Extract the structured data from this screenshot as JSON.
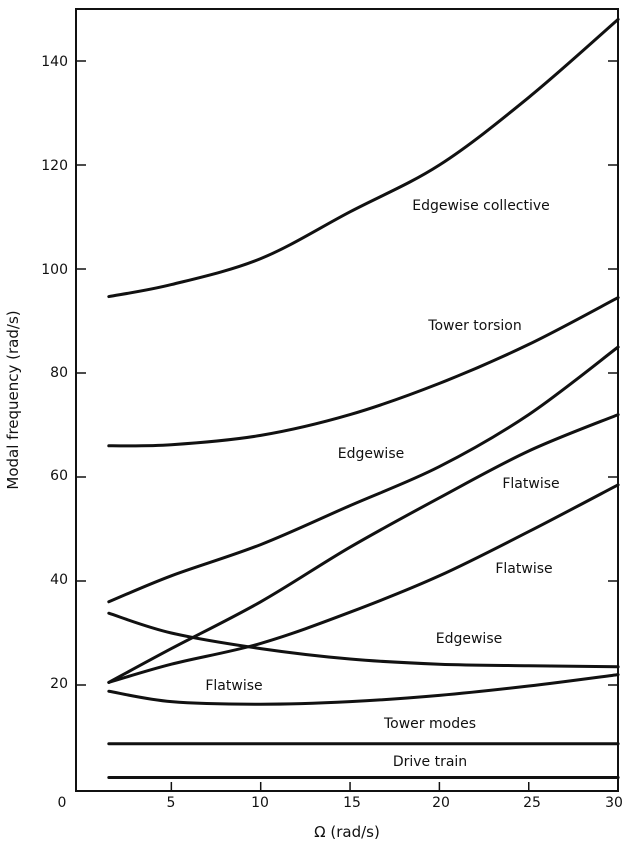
{
  "chart_data": {
    "type": "line",
    "title": "",
    "xlabel": "Ω (rad/s)",
    "ylabel": "Modal frequency (rad/s)",
    "xlim": [
      0,
      30
    ],
    "ylim": [
      0,
      150
    ],
    "xticks": [
      0,
      5,
      10,
      15,
      20,
      25,
      30
    ],
    "yticks": [
      20,
      40,
      60,
      80,
      100,
      120,
      140
    ],
    "grid": false,
    "legend": "none (curves labeled inline)",
    "line_color": "#111111",
    "series": [
      {
        "name": "Edgewise collective",
        "x": [
          1.5,
          5,
          10,
          15,
          20,
          25,
          30
        ],
        "y": [
          94.7,
          97,
          102,
          111,
          120,
          133,
          148
        ]
      },
      {
        "name": "Tower torsion",
        "x": [
          1.5,
          5,
          10,
          15,
          20,
          25,
          30
        ],
        "y": [
          66,
          66.2,
          68,
          72,
          78,
          85.5,
          94.5
        ]
      },
      {
        "name": "Edgewise",
        "x": [
          1.5,
          5,
          10,
          15,
          20,
          25,
          30
        ],
        "y": [
          36,
          41,
          47,
          54.5,
          62,
          72,
          85
        ]
      },
      {
        "name": "Flatwise",
        "x": [
          1.5,
          5,
          10,
          15,
          20,
          25,
          30
        ],
        "y": [
          20.5,
          27,
          36,
          46.5,
          56,
          65,
          72
        ]
      },
      {
        "name": "Flatwise",
        "x": [
          1.5,
          5,
          10,
          15,
          20,
          25,
          30
        ],
        "y": [
          20.5,
          24,
          28,
          34,
          41,
          49.5,
          58.5
        ]
      },
      {
        "name": "Edgewise",
        "x": [
          1.5,
          5,
          10,
          15,
          20,
          25,
          30
        ],
        "y": [
          33.8,
          30,
          27,
          25,
          24,
          23.7,
          23.5
        ]
      },
      {
        "name": "Flatwise",
        "x": [
          1.5,
          5,
          10,
          15,
          20,
          25,
          30
        ],
        "y": [
          18.8,
          16.8,
          16.3,
          16.8,
          18,
          19.8,
          22
        ]
      },
      {
        "name": "Tower modes",
        "x": [
          1.5,
          30
        ],
        "y": [
          8.7,
          8.7
        ]
      },
      {
        "name": "Drive train",
        "x": [
          1.5,
          30
        ],
        "y": [
          2.2,
          2.2
        ]
      }
    ]
  }
}
